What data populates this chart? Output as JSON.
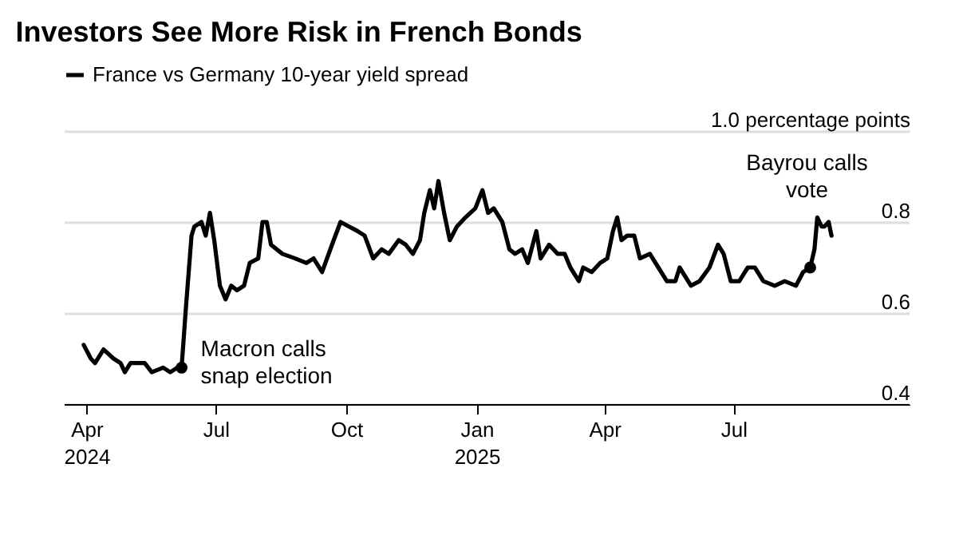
{
  "chart_data": {
    "type": "line",
    "title": "Investors See More Risk in French Bonds",
    "series": [
      {
        "name": "France vs Germany 10-year yield spread",
        "color": "#000000",
        "x": [
          "2024-03-30",
          "2024-04-04",
          "2024-04-07",
          "2024-04-13",
          "2024-04-20",
          "2024-04-25",
          "2024-04-28",
          "2024-05-02",
          "2024-05-12",
          "2024-05-17",
          "2024-05-25",
          "2024-05-30",
          "2024-06-04",
          "2024-06-07",
          "2024-06-10",
          "2024-06-14",
          "2024-06-16",
          "2024-06-21",
          "2024-06-24",
          "2024-06-27",
          "2024-06-30",
          "2024-07-04",
          "2024-07-08",
          "2024-07-12",
          "2024-07-16",
          "2024-07-21",
          "2024-07-25",
          "2024-07-31",
          "2024-08-03",
          "2024-08-06",
          "2024-08-09",
          "2024-08-17",
          "2024-08-26",
          "2024-09-03",
          "2024-09-08",
          "2024-09-14",
          "2024-09-21",
          "2024-09-27",
          "2024-10-03",
          "2024-10-09",
          "2024-10-14",
          "2024-10-20",
          "2024-10-26",
          "2024-10-31",
          "2024-11-07",
          "2024-11-12",
          "2024-11-17",
          "2024-11-22",
          "2024-11-25",
          "2024-11-29",
          "2024-12-02",
          "2024-12-05",
          "2024-12-09",
          "2024-12-13",
          "2024-12-18",
          "2024-12-24",
          "2024-12-31",
          "2025-01-05",
          "2025-01-09",
          "2025-01-13",
          "2025-01-19",
          "2025-01-24",
          "2025-01-28",
          "2025-02-02",
          "2025-02-06",
          "2025-02-12",
          "2025-02-15",
          "2025-02-21",
          "2025-02-27",
          "2025-03-04",
          "2025-03-08",
          "2025-03-14",
          "2025-03-17",
          "2025-03-23",
          "2025-03-29",
          "2025-04-03",
          "2025-04-07",
          "2025-04-10",
          "2025-04-13",
          "2025-04-17",
          "2025-04-22",
          "2025-04-26",
          "2025-05-03",
          "2025-05-09",
          "2025-05-15",
          "2025-05-21",
          "2025-05-24",
          "2025-06-01",
          "2025-06-07",
          "2025-06-14",
          "2025-06-20",
          "2025-06-24",
          "2025-06-29",
          "2025-07-05",
          "2025-07-11",
          "2025-07-16",
          "2025-07-22",
          "2025-07-30",
          "2025-08-06",
          "2025-08-14",
          "2025-08-19",
          "2025-08-24",
          "2025-08-27",
          "2025-08-29",
          "2025-09-01",
          "2025-09-03",
          "2025-09-06",
          "2025-09-08"
        ],
        "values": [
          0.53,
          0.5,
          0.49,
          0.52,
          0.5,
          0.49,
          0.47,
          0.49,
          0.49,
          0.47,
          0.48,
          0.47,
          0.48,
          0.48,
          0.61,
          0.77,
          0.79,
          0.8,
          0.77,
          0.82,
          0.76,
          0.66,
          0.63,
          0.66,
          0.65,
          0.66,
          0.71,
          0.72,
          0.8,
          0.8,
          0.75,
          0.73,
          0.72,
          0.71,
          0.72,
          0.69,
          0.75,
          0.8,
          0.79,
          0.78,
          0.77,
          0.72,
          0.74,
          0.73,
          0.76,
          0.75,
          0.73,
          0.76,
          0.82,
          0.87,
          0.83,
          0.89,
          0.82,
          0.76,
          0.79,
          0.81,
          0.83,
          0.87,
          0.82,
          0.83,
          0.8,
          0.74,
          0.73,
          0.74,
          0.71,
          0.78,
          0.72,
          0.75,
          0.73,
          0.73,
          0.7,
          0.67,
          0.7,
          0.69,
          0.71,
          0.72,
          0.78,
          0.81,
          0.76,
          0.77,
          0.77,
          0.72,
          0.73,
          0.7,
          0.67,
          0.67,
          0.7,
          0.66,
          0.67,
          0.7,
          0.75,
          0.73,
          0.67,
          0.67,
          0.7,
          0.7,
          0.67,
          0.66,
          0.67,
          0.66,
          0.69,
          0.7,
          0.74,
          0.81,
          0.79,
          0.79,
          0.8,
          0.77
        ]
      }
    ],
    "annotations": [
      {
        "text": "Macron calls\nsnap election",
        "x": "2024-06-07",
        "y": 0.48
      },
      {
        "text": "Bayrou calls\nvote",
        "x": "2025-08-24",
        "y": 0.7
      }
    ],
    "xlim": [
      "2024-03-16",
      "2025-11-02"
    ],
    "xticks": [
      {
        "value": "2024-04-01",
        "label": "Apr\n2024"
      },
      {
        "value": "2024-07-01",
        "label": "Jul"
      },
      {
        "value": "2024-10-01",
        "label": "Oct"
      },
      {
        "value": "2025-01-01",
        "label": "Jan\n2025"
      },
      {
        "value": "2025-04-01",
        "label": "Apr"
      },
      {
        "value": "2025-07-01",
        "label": "Jul"
      }
    ],
    "ylim": [
      0.4,
      1.0
    ],
    "yticks": [
      0.4,
      0.6,
      0.8,
      {
        "value": 1.0,
        "label": "1.0 percentage points"
      }
    ],
    "grid": "y",
    "legend": "top left",
    "line_style": "solid",
    "marker": "none"
  }
}
